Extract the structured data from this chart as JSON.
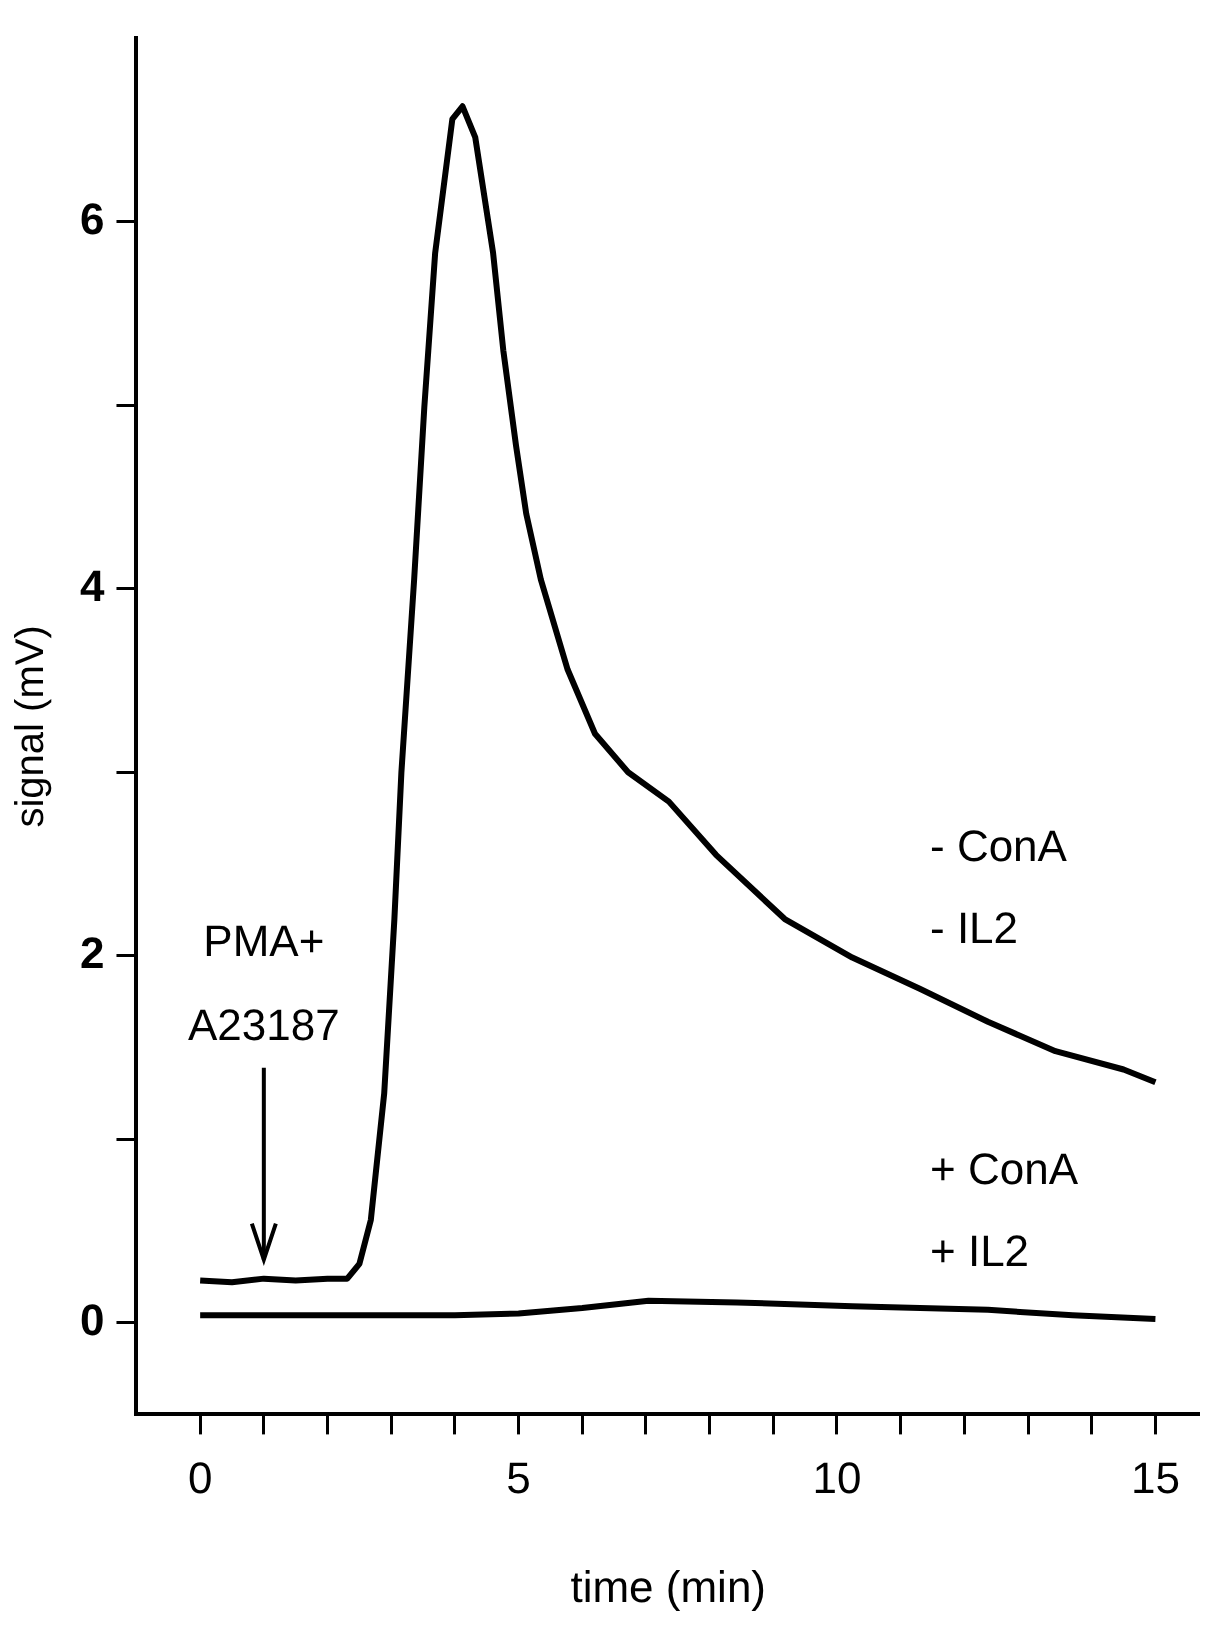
{
  "chart_data": {
    "type": "line",
    "xlabel": "time (min)",
    "ylabel": "signal (mV)",
    "xlim": [
      -1,
      15.7
    ],
    "ylim": [
      -0.5,
      7
    ],
    "xticks": [
      0,
      {
        "value": 1,
        "label": null
      },
      {
        "value": 2,
        "label": null
      },
      {
        "value": 3,
        "label": null
      },
      {
        "value": 4,
        "label": null
      },
      5,
      {
        "value": 6,
        "label": null
      },
      {
        "value": 7,
        "label": null
      },
      {
        "value": 8,
        "label": null
      },
      {
        "value": 9,
        "label": null
      },
      10,
      {
        "value": 11,
        "label": null
      },
      {
        "value": 12,
        "label": null
      },
      {
        "value": 13,
        "label": null
      },
      {
        "value": 14,
        "label": null
      },
      15
    ],
    "yticks": [
      0,
      {
        "value": 1,
        "label": null
      },
      2,
      {
        "value": 3,
        "label": null
      },
      4,
      {
        "value": 5,
        "label": null
      },
      6
    ],
    "grid": false,
    "legend": false,
    "marker": "none",
    "line_style": "solid",
    "annotations": [
      {
        "text": "PMA+\nA23187",
        "x": 1,
        "y": 0.3
      }
    ],
    "series": [
      {
        "name": "- ConA\n- IL2",
        "color": "#000000",
        "x": [
          0,
          0.5,
          1,
          1.5,
          2,
          2.31,
          2.5,
          2.68,
          2.89,
          3.05,
          3.16,
          3.36,
          3.52,
          3.69,
          3.96,
          4.12,
          4.32,
          4.6,
          4.76,
          4.96,
          5.12,
          5.35,
          5.77,
          6.2,
          6.72,
          7.36,
          8.1,
          9.18,
          10.24,
          11.3,
          12.37,
          13.43,
          14.5,
          15
        ],
        "values": [
          0.23,
          0.22,
          0.24,
          0.23,
          0.24,
          0.24,
          0.32,
          0.56,
          1.25,
          2.2,
          3.0,
          4.05,
          4.99,
          5.83,
          6.56,
          6.63,
          6.46,
          5.83,
          5.3,
          4.78,
          4.41,
          4.05,
          3.56,
          3.21,
          3.0,
          2.84,
          2.55,
          2.2,
          1.99,
          1.82,
          1.64,
          1.48,
          1.38,
          1.31
        ]
      },
      {
        "name": "+ ConA\n+ IL2",
        "color": "#000000",
        "x": [
          0,
          1,
          2,
          3,
          4,
          5,
          6,
          7.04,
          8.43,
          10.24,
          12.37,
          13.7,
          15
        ],
        "values": [
          0.04,
          0.04,
          0.04,
          0.04,
          0.04,
          0.05,
          0.08,
          0.12,
          0.11,
          0.09,
          0.07,
          0.04,
          0.02
        ]
      }
    ]
  }
}
